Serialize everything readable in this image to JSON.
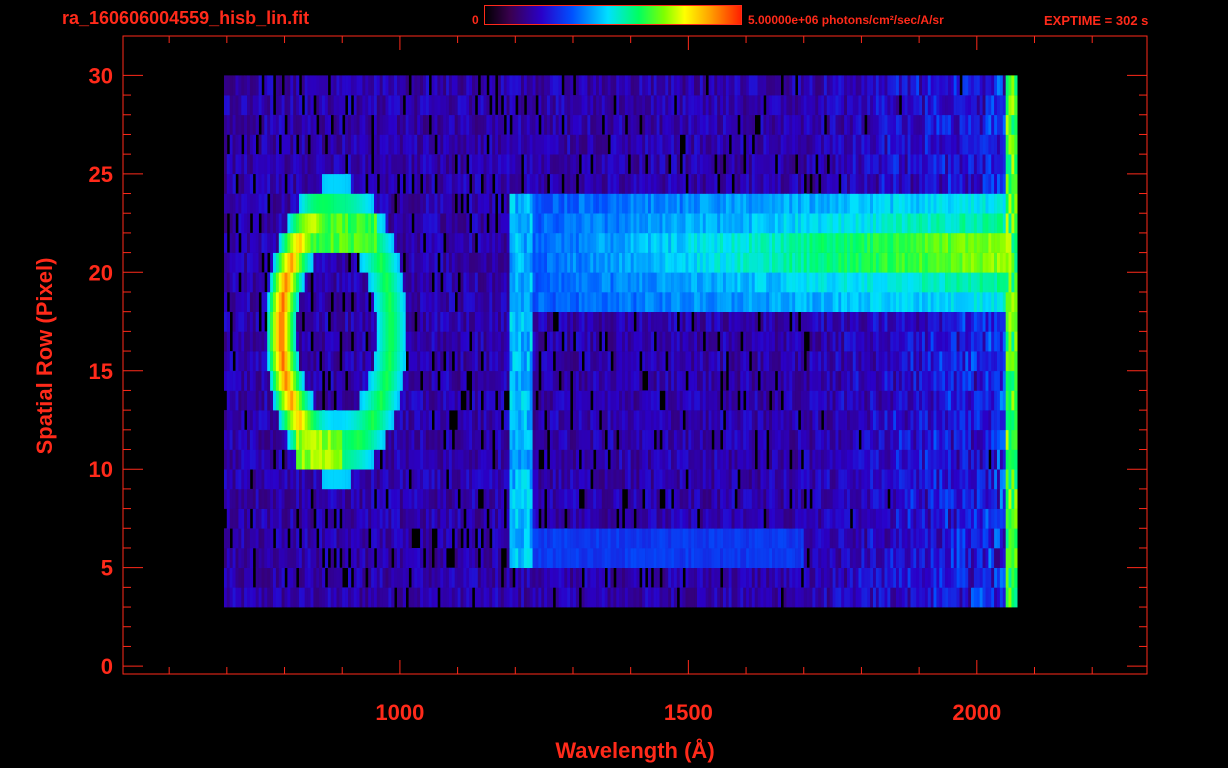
{
  "header": {
    "filename": "ra_160606004559_hisb_lin.fit",
    "colorbar_min": "0",
    "colorbar_max": "5.00000e+06 photons/cm²/sec/A/sr",
    "exptime": "EXPTIME = 302 s"
  },
  "colors": {
    "axis": "#ff2a1a",
    "background": "#000000"
  },
  "chart_data": {
    "type": "heatmap",
    "title": "",
    "xlabel": "Wavelength (Å)",
    "ylabel": "Spatial Row (Pixel)",
    "xlim": [
      520,
      2295
    ],
    "ylim": [
      -0.4,
      32
    ],
    "x_ticks": [
      1000,
      1500,
      2000
    ],
    "y_ticks": [
      0,
      5,
      10,
      15,
      20,
      25,
      30
    ],
    "colorbar_range": [
      0,
      5000000
    ],
    "colorbar_unit": "photons/cm²/sec/A/sr",
    "colormap": "rainbow",
    "grid": false,
    "data_extent": {
      "x": [
        695,
        2070
      ],
      "y": [
        3,
        30
      ]
    },
    "features": [
      {
        "label": "bright ring emission",
        "x_range": [
          790,
          990
        ],
        "y_range": [
          10,
          23
        ],
        "peak_intensity_frac": 0.95,
        "peak_at": [
          805,
          17
        ]
      },
      {
        "label": "horizontal band",
        "x_range": [
          1190,
          2060
        ],
        "y_range": [
          18.5,
          23.5
        ],
        "peak_intensity_frac": 0.8,
        "peak_at": [
          2020,
          21
        ]
      },
      {
        "label": "vertical streak",
        "x_range": [
          1190,
          1230
        ],
        "y_range": [
          5,
          24
        ],
        "peak_intensity_frac": 0.45
      },
      {
        "label": "lower band",
        "x_range": [
          1190,
          1700
        ],
        "y_range": [
          5.5,
          6.5
        ],
        "peak_intensity_frac": 0.3
      }
    ]
  }
}
